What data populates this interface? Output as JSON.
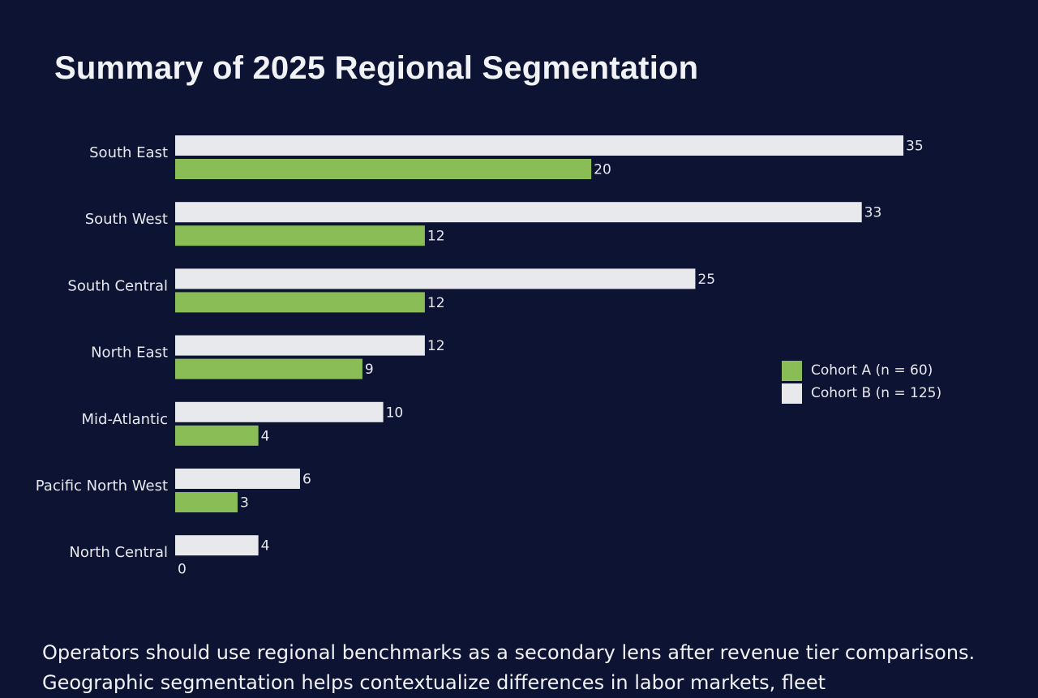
{
  "colors": {
    "background": "#0d1333",
    "cohort_a": "#8bbd56",
    "cohort_b": "#e8e9ec",
    "text": "#e8e9ee"
  },
  "caption": "Operators should use regional benchmarks as a secondary lens after revenue tier comparisons. Geographic segmentation helps contextualize differences in labor markets, fleet",
  "chart_data": {
    "type": "bar",
    "orientation": "horizontal",
    "title": "Summary of 2025 Regional Segmentation",
    "categories": [
      "South East",
      "South West",
      "South Central",
      "North East",
      "Mid-Atlantic",
      "Pacific North West",
      "North Central"
    ],
    "series": [
      {
        "name": "Cohort B (n = 125)",
        "color": "#e8e9ec",
        "values": [
          35,
          33,
          25,
          12,
          10,
          6,
          4
        ]
      },
      {
        "name": "Cohort A (n = 60)",
        "color": "#8bbd56",
        "values": [
          20,
          12,
          12,
          9,
          4,
          3,
          0
        ]
      }
    ],
    "legend": [
      "Cohort A (n = 60)",
      "Cohort B (n = 125)"
    ],
    "legend_placement": "right",
    "xlim": [
      0,
      35
    ],
    "grid": false,
    "data_labels": true
  }
}
